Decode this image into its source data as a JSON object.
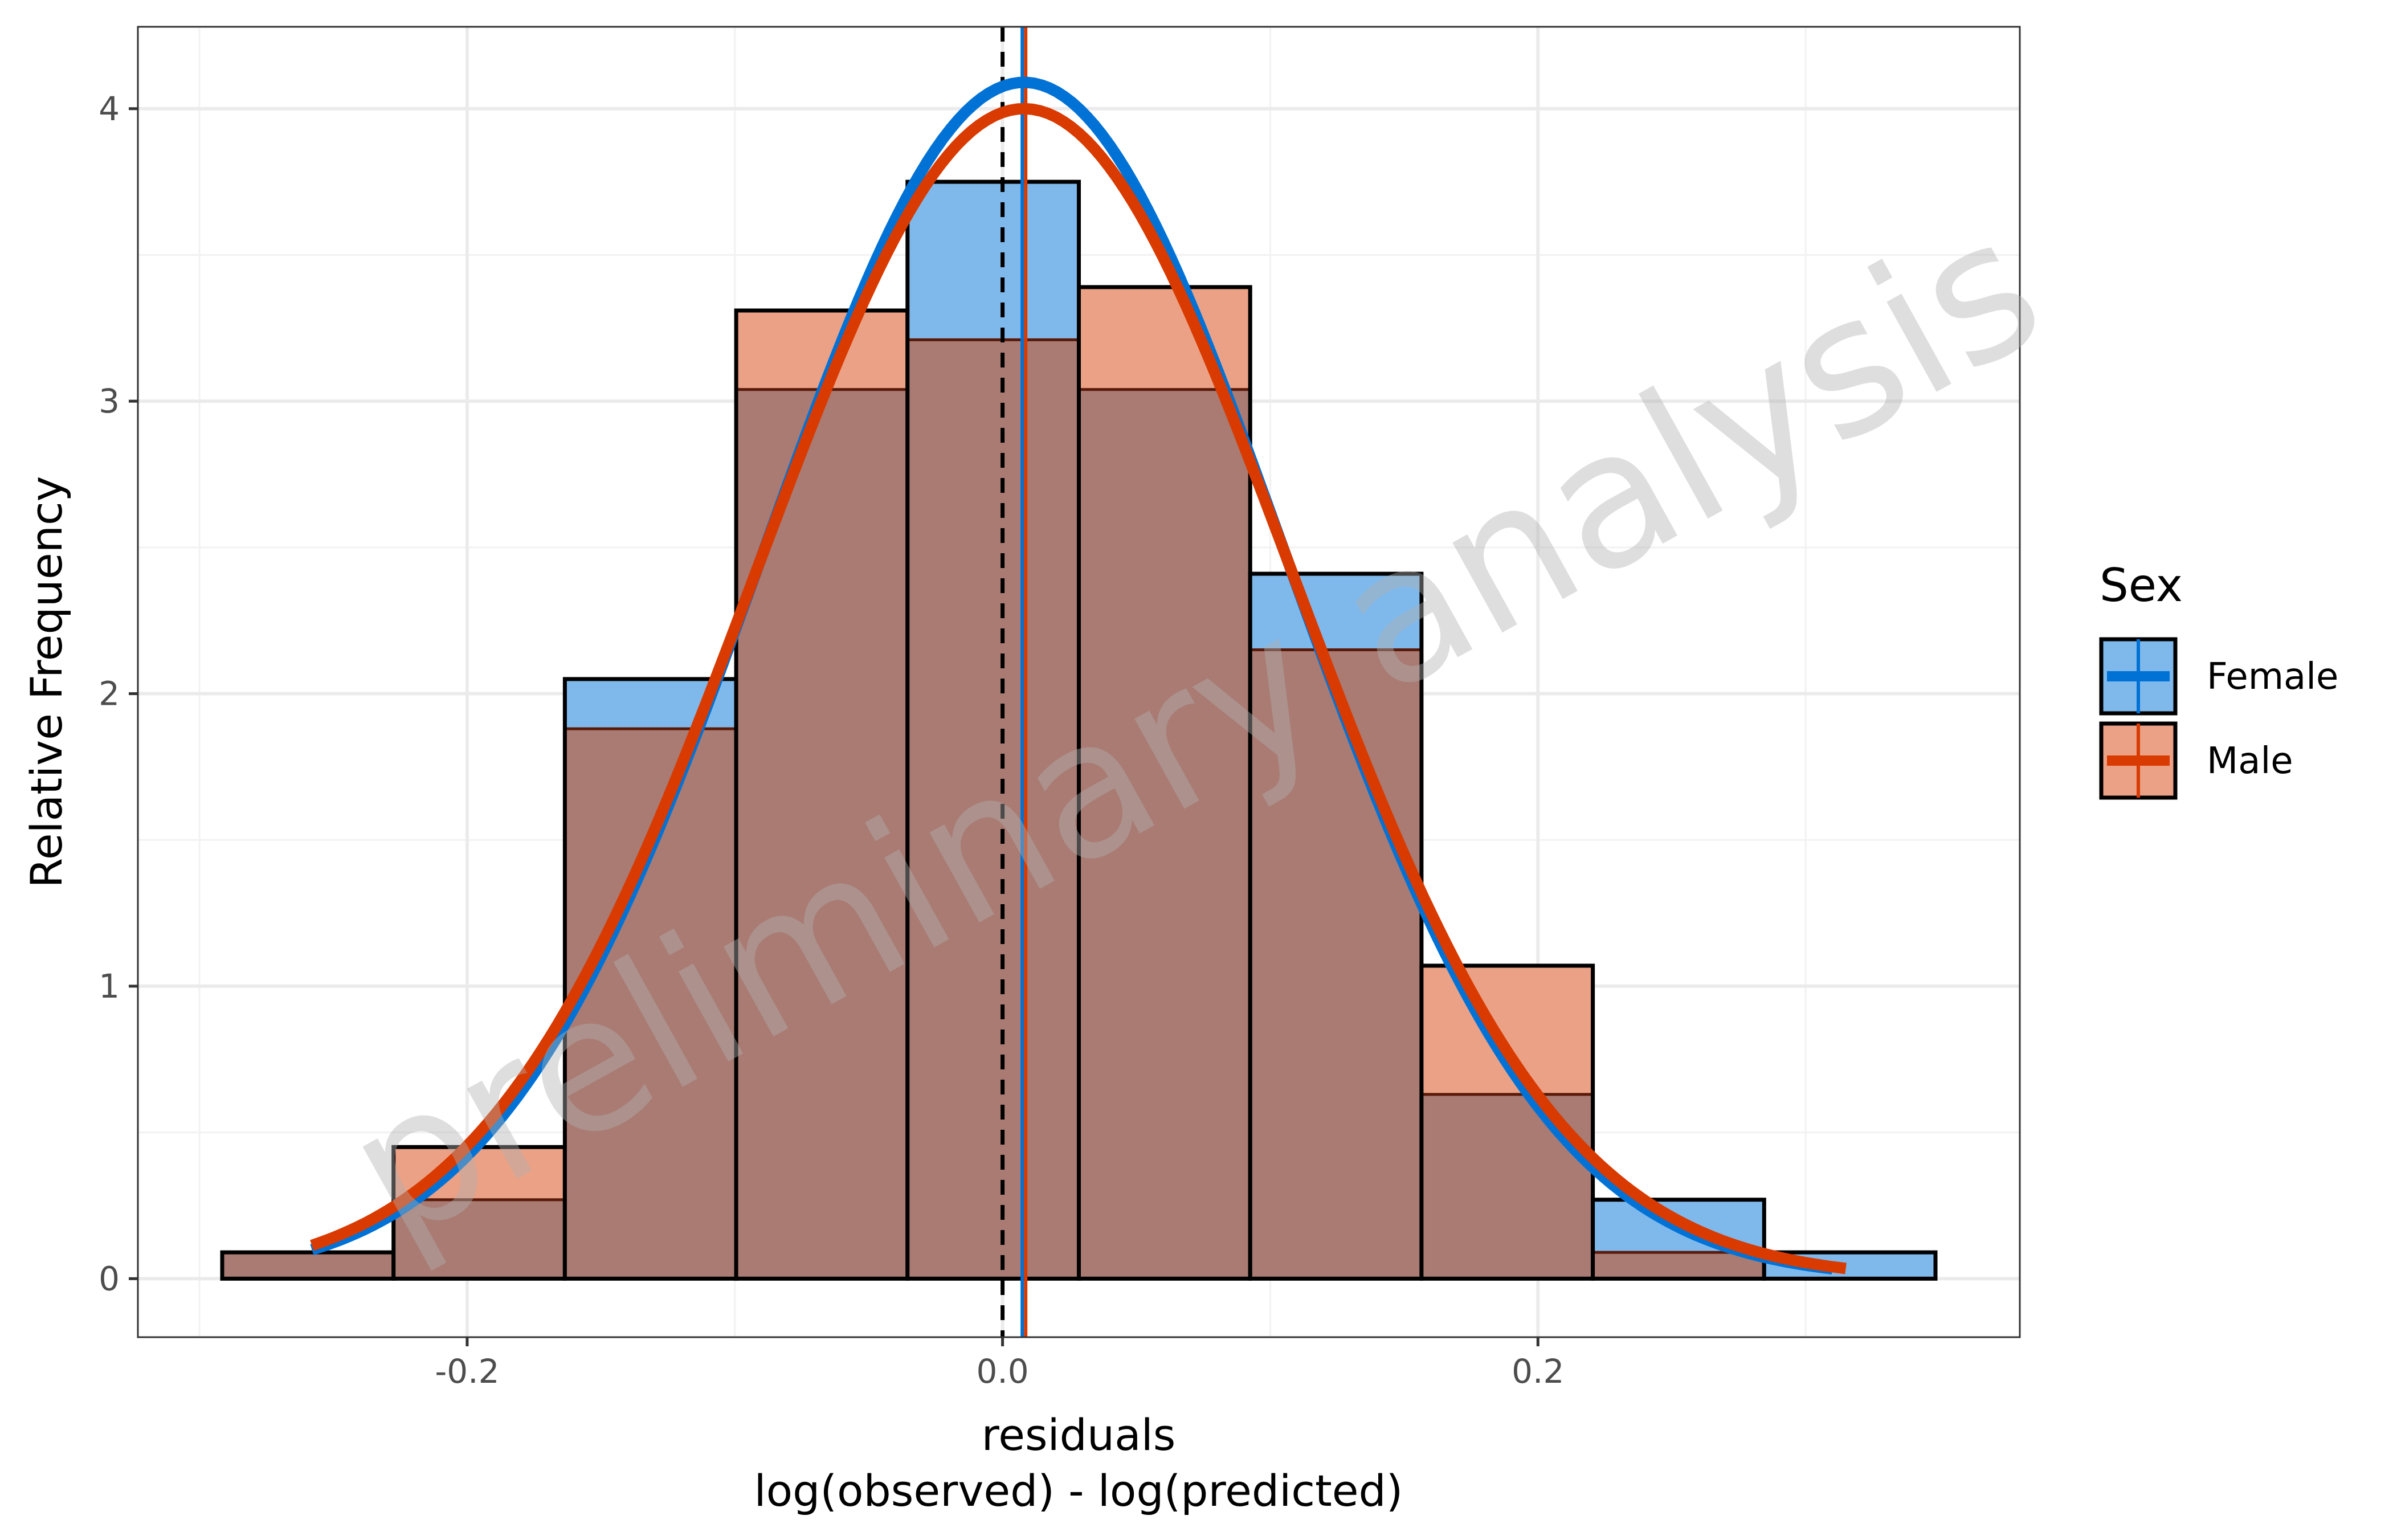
{
  "chart_data": {
    "type": "histogram",
    "xlabel": "residuals",
    "xlabel_line2": "log(observed) - log(predicted)",
    "ylabel": "Relative Frequency",
    "xlim": [
      -0.323,
      0.38
    ],
    "ylim": [
      -0.2,
      4.28
    ],
    "x_ticks": [
      -0.2,
      0.0,
      0.2
    ],
    "x_tick_labels": [
      "-0.2",
      "0.0",
      "0.2"
    ],
    "y_ticks": [
      0,
      1,
      2,
      3,
      4
    ],
    "y_tick_labels": [
      "0",
      "1",
      "2",
      "3",
      "4"
    ],
    "grid": true,
    "legend": {
      "title": "Sex",
      "position": "right"
    },
    "bin_edges": [
      -0.2915,
      -0.2275,
      -0.1635,
      -0.0995,
      -0.0355,
      0.0285,
      0.0925,
      0.1565,
      0.2205,
      0.2845,
      0.3485
    ],
    "series": [
      {
        "name": "Female",
        "color": "#0072D6",
        "fill": "#7FB9EB",
        "values": [
          0.09,
          0.27,
          2.05,
          3.04,
          3.75,
          3.04,
          2.41,
          0.63,
          0.27,
          0.09
        ],
        "mean": 0.008,
        "sd": 0.0975,
        "curve_peak": 4.09,
        "curve_x_range": [
          -0.258,
          0.31
        ]
      },
      {
        "name": "Male",
        "color": "#D93A00",
        "fill": "#EBA185",
        "values": [
          0.09,
          0.45,
          1.88,
          3.31,
          3.21,
          3.39,
          2.15,
          1.07,
          0.09,
          0.0
        ],
        "mean": 0.008,
        "sd": 0.0997,
        "curve_peak": 4.0,
        "curve_x_range": [
          -0.258,
          0.315
        ]
      }
    ],
    "reference_lines": [
      {
        "x": 0.0,
        "style": "dashed",
        "color": "#000000"
      },
      {
        "x": 0.008,
        "style": "solid",
        "color": "#0072D6"
      },
      {
        "x": 0.008,
        "style": "solid",
        "color": "#D93A00"
      }
    ],
    "overlap_color": "#A97B73",
    "watermark": "preliminary analysis"
  }
}
